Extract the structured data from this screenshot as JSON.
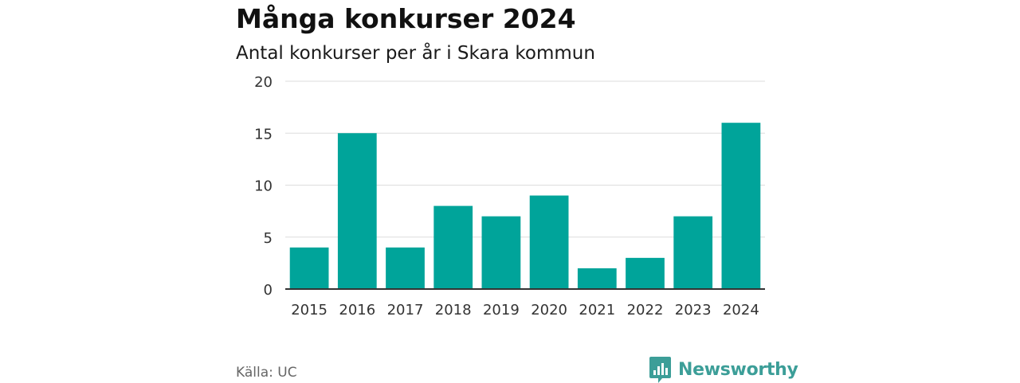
{
  "header": {
    "title": "Många konkurser 2024",
    "subtitle": "Antal konkurser per år i Skara kommun"
  },
  "footer": {
    "source": "Källa: UC",
    "brand": "Newsworthy"
  },
  "colors": {
    "bar": "#00a49a",
    "grid": "#dddddd",
    "axis": "#333333",
    "brand": "#3c9e98"
  },
  "chart_data": {
    "type": "bar",
    "title": "Många konkurser 2024",
    "subtitle": "Antal konkurser per år i Skara kommun",
    "xlabel": "",
    "ylabel": "",
    "categories": [
      "2015",
      "2016",
      "2017",
      "2018",
      "2019",
      "2020",
      "2021",
      "2022",
      "2023",
      "2024"
    ],
    "values": [
      4,
      15,
      4,
      8,
      7,
      9,
      2,
      3,
      7,
      16
    ],
    "ylim": [
      0,
      20
    ],
    "yticks": [
      0,
      5,
      10,
      15,
      20
    ],
    "grid": true,
    "legend": "none"
  }
}
